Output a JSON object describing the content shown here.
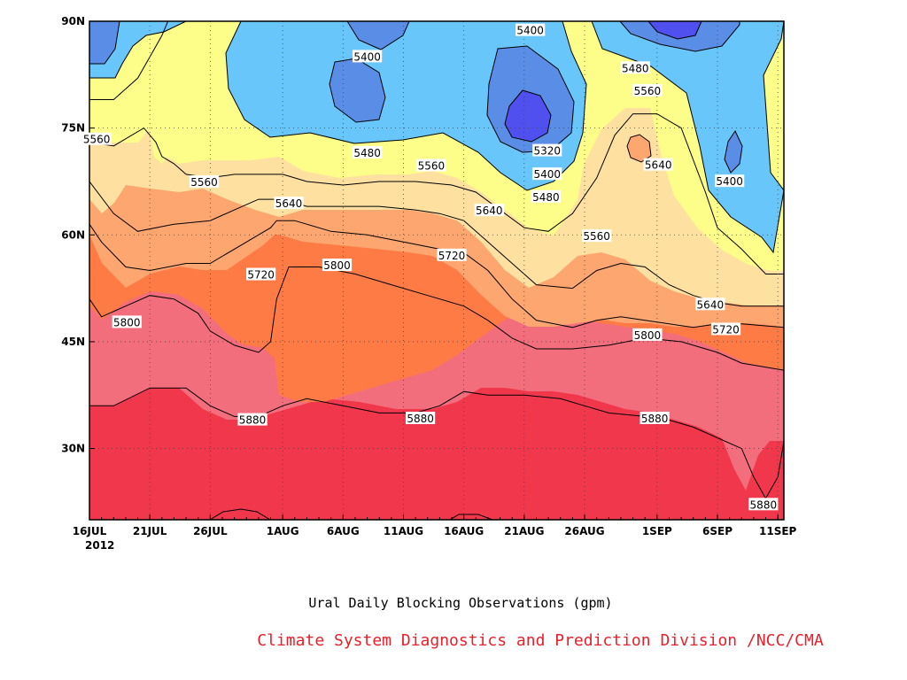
{
  "chart_data": {
    "type": "heatmap",
    "subtype": "filled-contour time-latitude",
    "title": "Ural Daily Blocking Observations (gpm)",
    "credit": "Climate System Diagnostics and Prediction Division /NCC/CMA",
    "x_tick_labels": [
      "16JUL",
      "21JUL",
      "26JUL",
      "1AUG",
      "6AUG",
      "11AUG",
      "16AUG",
      "21AUG",
      "26AUG",
      "1SEP",
      "6SEP",
      "11SEP"
    ],
    "x_tick_days": [
      0,
      5,
      10,
      16,
      21,
      26,
      31,
      36,
      41,
      47,
      52,
      57
    ],
    "x_range_days": [
      0,
      57.5
    ],
    "x_sub_label": "2012",
    "y_tick_labels": [
      "30N",
      "45N",
      "60N",
      "75N",
      "90N"
    ],
    "y_tick_values": [
      30,
      45,
      60,
      75,
      90
    ],
    "ylim": [
      20,
      90
    ],
    "grid": "dotted",
    "contour_levels": [
      5320,
      5400,
      5480,
      5560,
      5640,
      5720,
      5800,
      5880
    ],
    "fill_colors": [
      "#5050ee",
      "#5a8ee6",
      "#68c6fa",
      "#fdfd8a",
      "#fee1a0",
      "#fea670",
      "#fe7b46",
      "#f36e7c",
      "#f1374c"
    ],
    "contours": {
      "5880": [
        [
          0,
          36
        ],
        [
          2,
          36
        ],
        [
          5,
          38.5
        ],
        [
          8,
          38.5
        ],
        [
          10,
          36
        ],
        [
          12,
          34.5
        ],
        [
          14,
          34.5
        ],
        [
          16,
          36
        ],
        [
          18,
          37
        ],
        [
          21,
          36
        ],
        [
          24,
          35
        ],
        [
          27,
          35
        ],
        [
          29,
          36
        ],
        [
          31,
          38
        ],
        [
          33,
          37.5
        ],
        [
          36,
          37.5
        ],
        [
          39,
          37
        ],
        [
          41,
          36
        ],
        [
          43,
          35
        ],
        [
          46,
          34.5
        ],
        [
          48,
          34
        ],
        [
          50,
          33
        ],
        [
          52,
          31.5
        ],
        [
          54,
          30
        ],
        [
          55,
          26
        ],
        [
          56,
          23
        ],
        [
          57,
          26
        ],
        [
          57.5,
          31
        ]
      ],
      "5800": [
        [
          0,
          51
        ],
        [
          1,
          48.5
        ],
        [
          3,
          50
        ],
        [
          5,
          51.5
        ],
        [
          7,
          51
        ],
        [
          9,
          49
        ],
        [
          10,
          46.5
        ],
        [
          12,
          44.5
        ],
        [
          14,
          43.5
        ],
        [
          15,
          45
        ],
        [
          15.5,
          51
        ],
        [
          16.5,
          55.5
        ],
        [
          19,
          55.5
        ],
        [
          22,
          54.5
        ],
        [
          25,
          53
        ],
        [
          28,
          51.5
        ],
        [
          31,
          50
        ],
        [
          33,
          48
        ],
        [
          35,
          45.5
        ],
        [
          37,
          44
        ],
        [
          40,
          44
        ],
        [
          43,
          44.5
        ],
        [
          46,
          45.5
        ],
        [
          49,
          45
        ],
        [
          52,
          43.5
        ],
        [
          54,
          42
        ],
        [
          57.5,
          41
        ]
      ],
      "5720": [
        [
          0,
          61.5
        ],
        [
          1,
          59
        ],
        [
          3,
          55.5
        ],
        [
          5,
          55
        ],
        [
          8,
          56
        ],
        [
          10,
          56
        ],
        [
          13,
          59
        ],
        [
          15,
          61
        ],
        [
          15.5,
          62
        ],
        [
          17,
          62
        ],
        [
          20,
          60.5
        ],
        [
          23,
          60
        ],
        [
          26,
          59
        ],
        [
          29,
          58
        ],
        [
          31,
          57.5
        ],
        [
          33,
          55
        ],
        [
          35,
          51
        ],
        [
          37,
          48
        ],
        [
          40,
          47
        ],
        [
          42,
          48
        ],
        [
          44,
          48.5
        ],
        [
          46,
          48
        ],
        [
          48,
          47.5
        ],
        [
          50,
          47
        ],
        [
          52,
          47.5
        ],
        [
          54,
          47.5
        ],
        [
          57.5,
          47
        ]
      ],
      "5640": [
        [
          0,
          67.5
        ],
        [
          2,
          63
        ],
        [
          4,
          60.5
        ],
        [
          7,
          61.5
        ],
        [
          10,
          62
        ],
        [
          12,
          63.5
        ],
        [
          14,
          65
        ],
        [
          16,
          65
        ],
        [
          18,
          64
        ],
        [
          21,
          64
        ],
        [
          24,
          64
        ],
        [
          27,
          63.5
        ],
        [
          29,
          63
        ],
        [
          31,
          62
        ],
        [
          33,
          59
        ],
        [
          35,
          56
        ],
        [
          37,
          53
        ],
        [
          40,
          52.5
        ],
        [
          42,
          55
        ],
        [
          44,
          56
        ],
        [
          46,
          55.5
        ],
        [
          48,
          53
        ],
        [
          50,
          51.5
        ],
        [
          52,
          50.5
        ],
        [
          54,
          50
        ],
        [
          57.5,
          50
        ]
      ],
      "5560": [
        [
          0,
          73
        ],
        [
          2,
          72.5
        ],
        [
          4.5,
          75
        ],
        [
          5.5,
          73
        ],
        [
          6,
          71
        ],
        [
          7,
          70
        ],
        [
          8,
          68.5
        ],
        [
          10,
          68
        ],
        [
          12,
          68.5
        ],
        [
          14,
          68.5
        ],
        [
          16,
          68.5
        ],
        [
          18,
          67.5
        ],
        [
          21,
          67
        ],
        [
          24,
          67.5
        ],
        [
          27,
          67.5
        ],
        [
          30,
          67
        ],
        [
          32,
          66
        ],
        [
          34,
          63.5
        ],
        [
          36,
          61
        ],
        [
          38,
          60.5
        ],
        [
          40,
          63
        ],
        [
          42,
          68
        ],
        [
          43.5,
          74
        ],
        [
          45,
          77
        ],
        [
          47,
          77
        ],
        [
          49,
          75
        ],
        [
          51,
          66
        ],
        [
          52,
          61
        ],
        [
          54,
          58
        ],
        [
          56,
          54.5
        ],
        [
          57.5,
          54.5
        ]
      ],
      "5480": [
        [
          0,
          79
        ],
        [
          2,
          79
        ],
        [
          4,
          82
        ],
        [
          5,
          85
        ],
        [
          6,
          88
        ],
        [
          6.5,
          90
        ]
      ]
    },
    "contour_labels": [
      {
        "value": "5560",
        "x_day": 0.6,
        "lat": 73.5
      },
      {
        "value": "5560",
        "x_day": 9.5,
        "lat": 67.5
      },
      {
        "value": "5640",
        "x_day": 16.5,
        "lat": 64.5
      },
      {
        "value": "5720",
        "x_day": 14.2,
        "lat": 54.5
      },
      {
        "value": "5800",
        "x_day": 3.1,
        "lat": 47.8
      },
      {
        "value": "5800",
        "x_day": 20.5,
        "lat": 55.8
      },
      {
        "value": "5880",
        "x_day": 13.5,
        "lat": 34.1
      },
      {
        "value": "5880",
        "x_day": 27.4,
        "lat": 34.3
      },
      {
        "value": "5880",
        "x_day": 46.8,
        "lat": 34.3
      },
      {
        "value": "5880",
        "x_day": 55.8,
        "lat": 22.2
      },
      {
        "value": "5480",
        "x_day": 23.0,
        "lat": 71.6
      },
      {
        "value": "5400",
        "x_day": 23.0,
        "lat": 85.1
      },
      {
        "value": "5560",
        "x_day": 28.3,
        "lat": 69.8
      },
      {
        "value": "5720",
        "x_day": 30.0,
        "lat": 57.2
      },
      {
        "value": "5640",
        "x_day": 33.1,
        "lat": 63.5
      },
      {
        "value": "5400",
        "x_day": 36.5,
        "lat": 88.8
      },
      {
        "value": "5320",
        "x_day": 37.9,
        "lat": 71.9
      },
      {
        "value": "5400",
        "x_day": 37.9,
        "lat": 68.6
      },
      {
        "value": "5480",
        "x_day": 37.8,
        "lat": 65.4
      },
      {
        "value": "5560",
        "x_day": 42.0,
        "lat": 59.9
      },
      {
        "value": "5480",
        "x_day": 45.2,
        "lat": 83.5
      },
      {
        "value": "5560",
        "x_day": 46.2,
        "lat": 80.3
      },
      {
        "value": "5640",
        "x_day": 47.1,
        "lat": 69.9
      },
      {
        "value": "5400",
        "x_day": 53.0,
        "lat": 67.6
      },
      {
        "value": "5640",
        "x_day": 51.4,
        "lat": 50.3
      },
      {
        "value": "5720",
        "x_day": 52.7,
        "lat": 46.8
      },
      {
        "value": "5800",
        "x_day": 46.2,
        "lat": 46.0
      }
    ]
  }
}
